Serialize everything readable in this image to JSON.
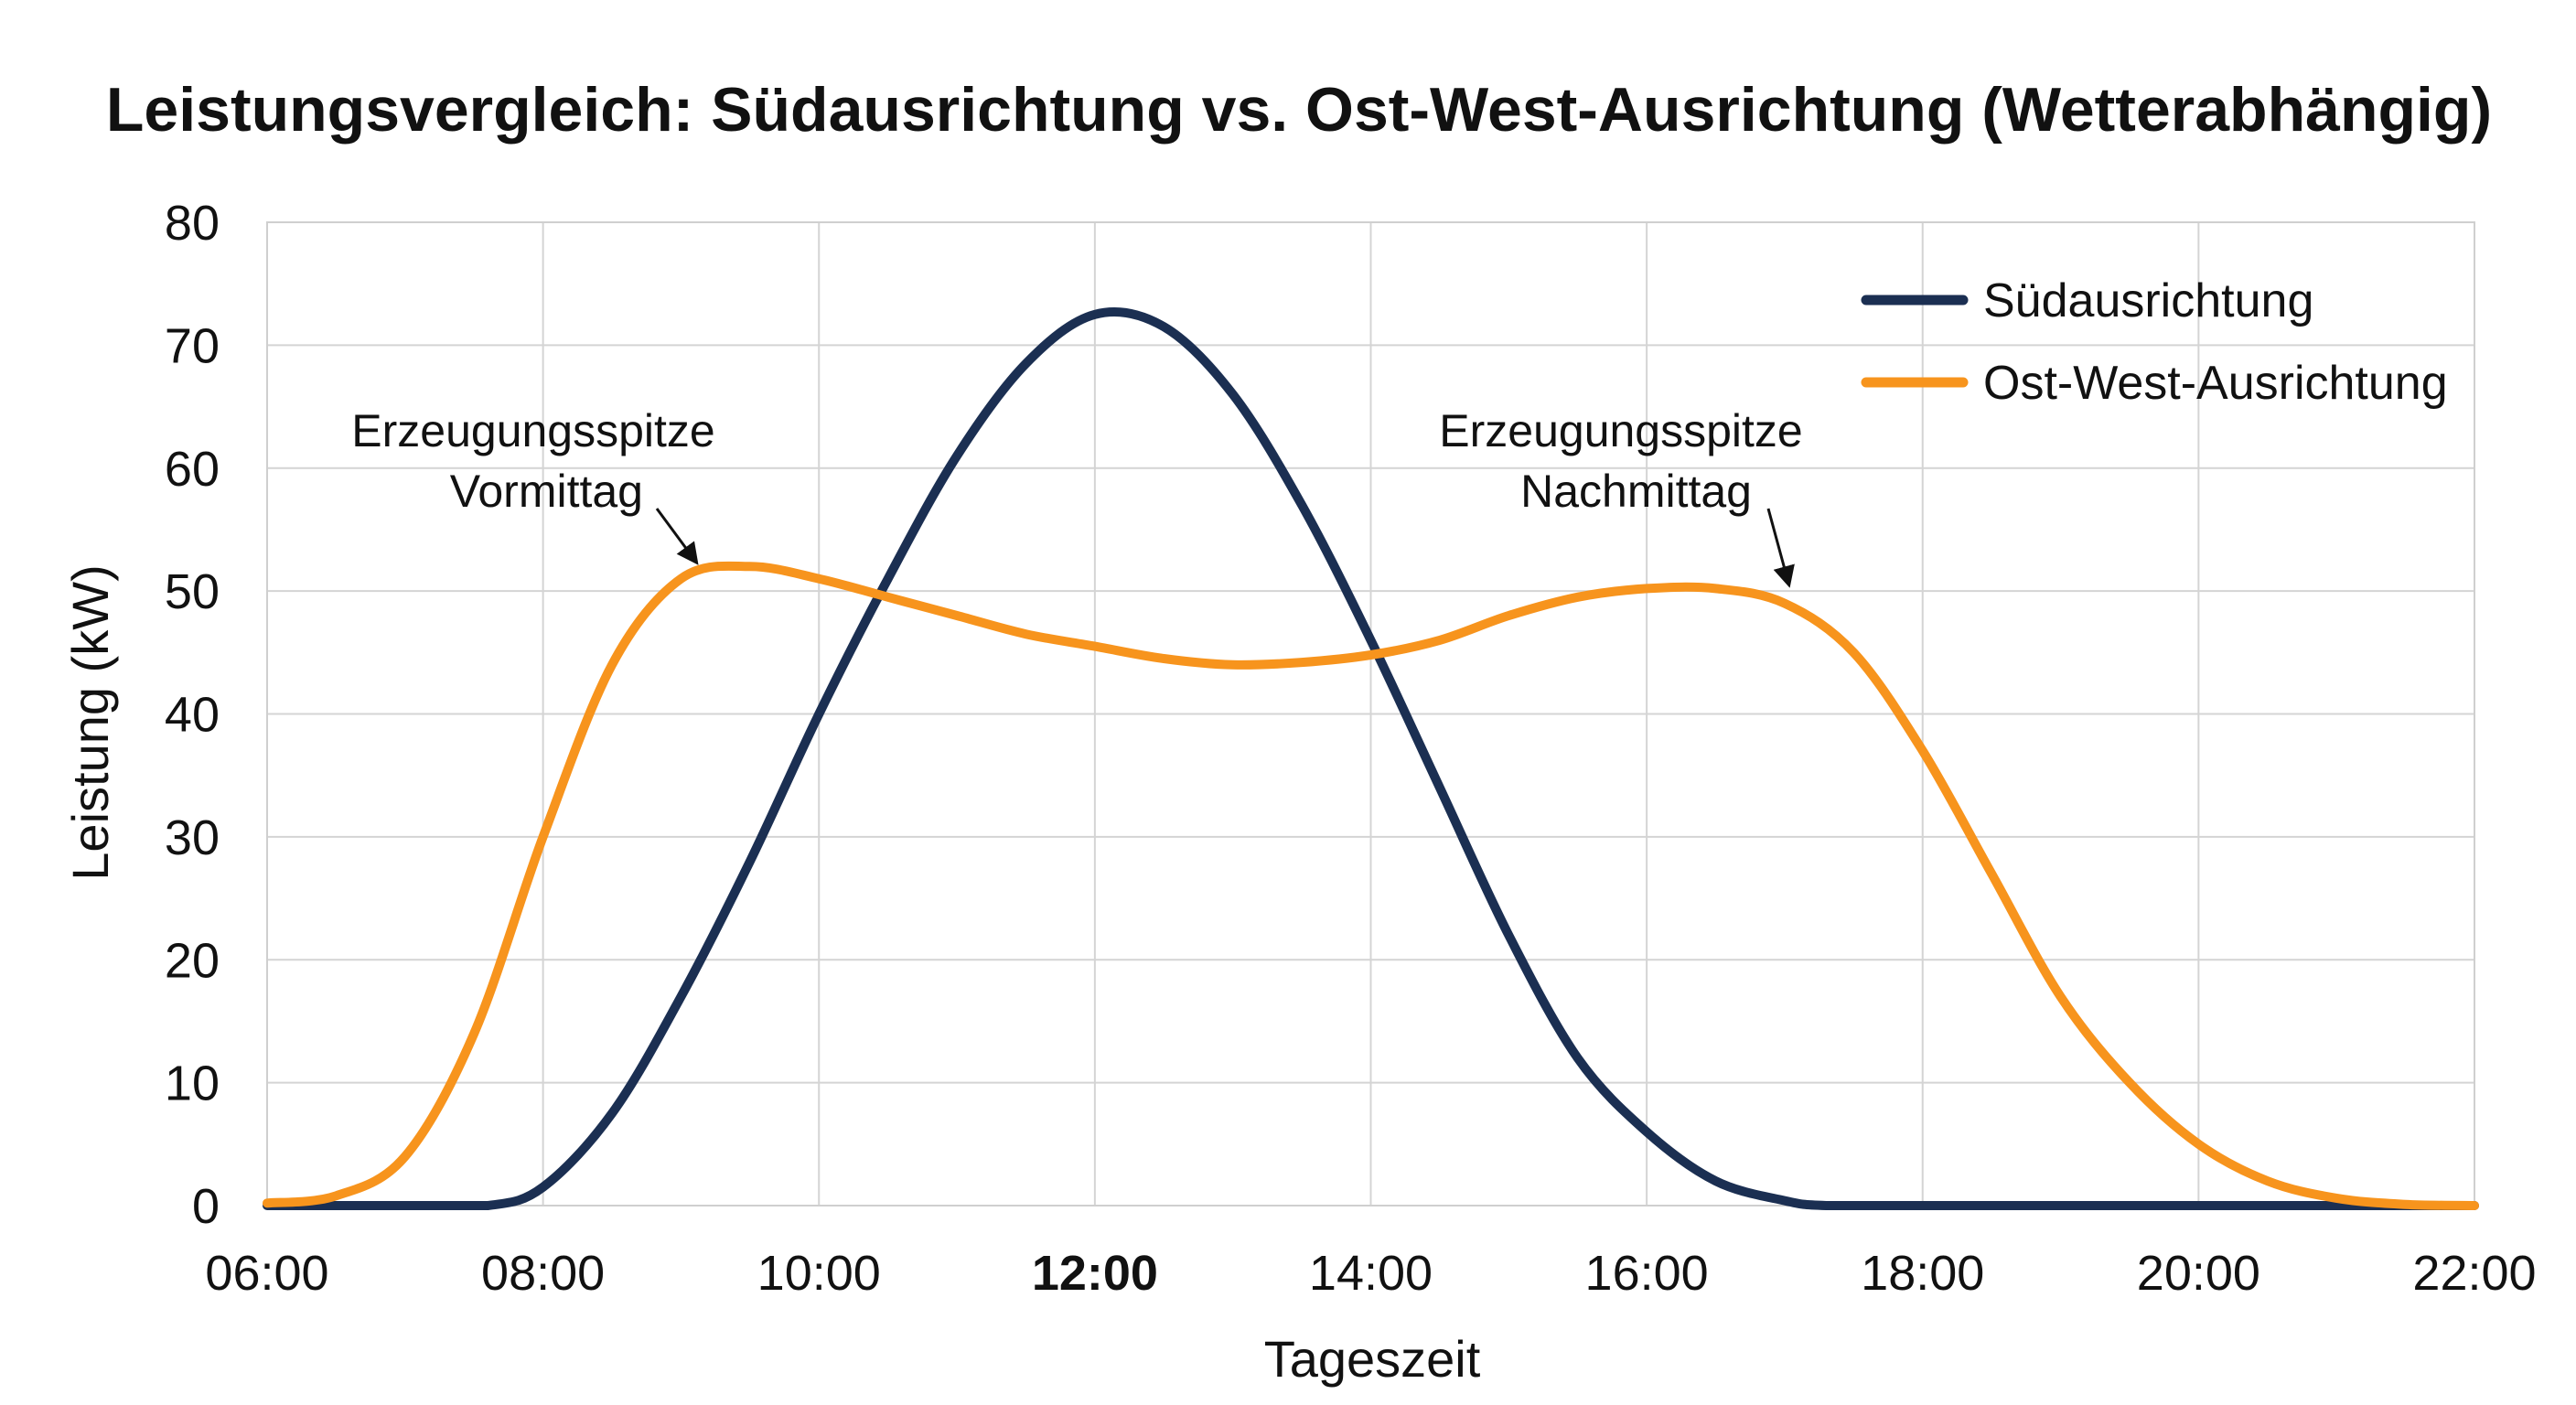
{
  "chart_data": {
    "type": "line",
    "title": "Leistungsvergleich: Südausrichtung vs. Ost-West-Ausrichtung (Wetterabhängig)",
    "xlabel": "Tageszeit",
    "ylabel": "Leistung (kW)",
    "x_ticks": [
      "06:00",
      "08:00",
      "10:00",
      "12:00",
      "14:00",
      "16:00",
      "18:00",
      "20:00",
      "22:00"
    ],
    "x_tick_bold": "12:00",
    "y_ticks": [
      "0",
      "10",
      "20",
      "30",
      "40",
      "50",
      "60",
      "70",
      "80"
    ],
    "xlim": [
      6,
      22
    ],
    "ylim": [
      0,
      80
    ],
    "grid": true,
    "legend_position": "top-right",
    "series": [
      {
        "name": "Südausrichtung",
        "color": "#1b2f52",
        "x": [
          6,
          7,
          7.6,
          8,
          8.5,
          9,
          9.5,
          10,
          10.5,
          11,
          11.5,
          12,
          12.5,
          13,
          13.5,
          14,
          14.5,
          15,
          15.5,
          16,
          16.5,
          17,
          17.3,
          18,
          20,
          22
        ],
        "y": [
          0,
          0,
          0,
          1.5,
          7.5,
          17,
          28,
          40,
          51,
          61,
          68.5,
          72.5,
          71.5,
          66,
          57,
          46,
          34,
          22,
          12,
          6,
          2,
          0.4,
          0,
          0,
          0,
          0
        ]
      },
      {
        "name": "Ost-West-Ausrichtung",
        "color": "#f7941d",
        "x": [
          6,
          6.5,
          7,
          7.5,
          8,
          8.5,
          9,
          9.5,
          10,
          10.5,
          11,
          11.5,
          12,
          12.5,
          13,
          13.5,
          14,
          14.5,
          15,
          15.5,
          16,
          16.5,
          17,
          17.5,
          18,
          18.5,
          19,
          19.5,
          20,
          20.5,
          21,
          21.5,
          22
        ],
        "y": [
          0.2,
          0.8,
          4,
          14,
          30,
          44,
          51,
          52,
          51,
          49.5,
          48,
          46.5,
          45.5,
          44.5,
          44,
          44.2,
          44.8,
          46,
          48,
          49.5,
          50.2,
          50.2,
          49,
          45,
          37,
          27,
          17,
          10,
          5,
          2,
          0.6,
          0.1,
          0
        ]
      }
    ],
    "annotations": [
      {
        "lines": [
          "Erzeugungsspitze",
          "Vormittag"
        ],
        "x": 9.5,
        "y": 52
      },
      {
        "lines": [
          "Erzeugungsspitze",
          "Nachmittag"
        ],
        "x": 17,
        "y": 50
      }
    ]
  }
}
